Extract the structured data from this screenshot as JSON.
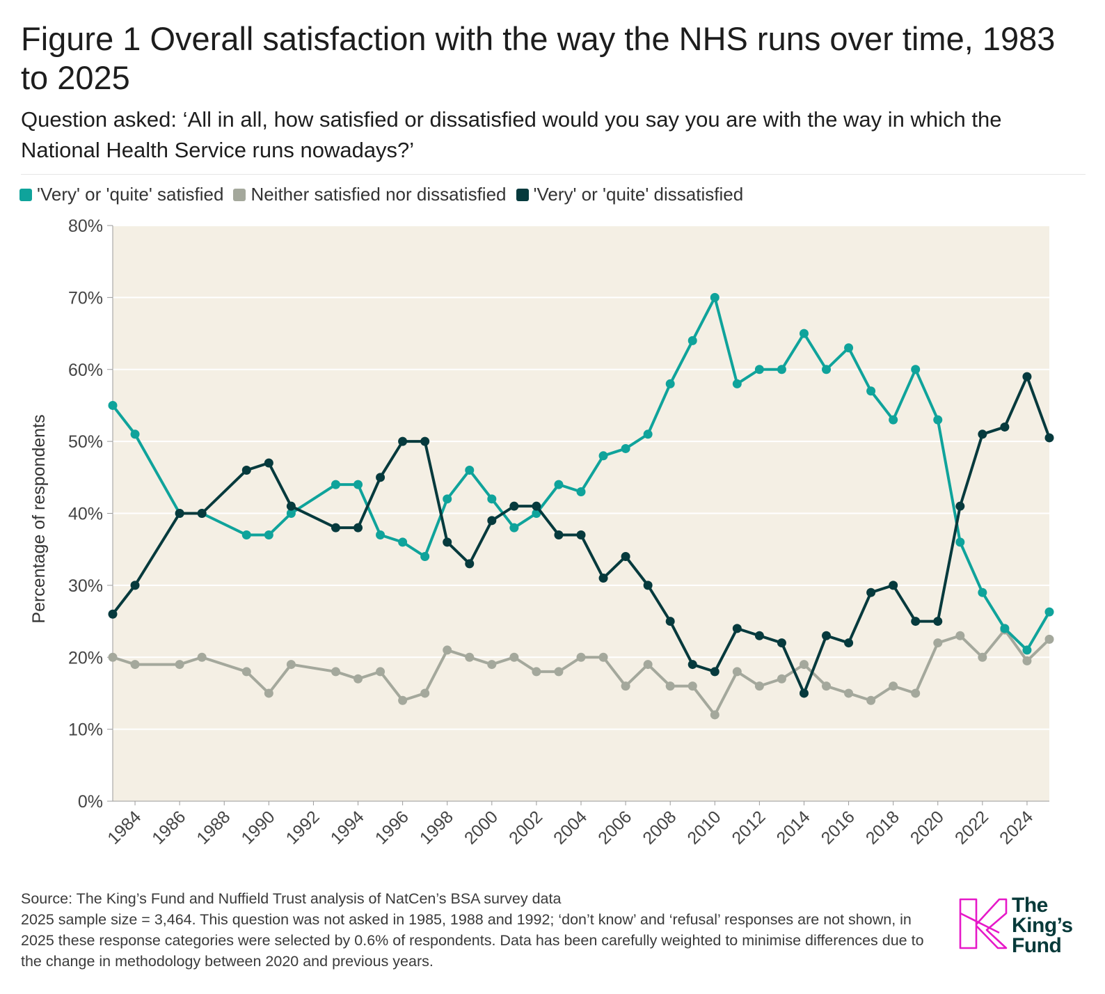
{
  "title": "Figure 1 Overall satisfaction with the way the NHS runs over time, 1983 to 2025",
  "subtitle": "Question asked: ‘All in all, how satisfied or dissatisfied would you say you are with the way in which the National Health Service runs nowadays?’",
  "legend": [
    {
      "label": "'Very' or 'quite' satisfied",
      "color": "#0fa39b"
    },
    {
      "label": "Neither satisfied nor dissatisfied",
      "color": "#a4a89c"
    },
    {
      "label": "'Very' or 'quite' dissatisfied",
      "color": "#063a3d"
    }
  ],
  "chart_data": {
    "type": "line",
    "ylabel": "Percentage of respondents",
    "xlabel": "",
    "ylim": [
      0,
      80
    ],
    "yticks": [
      "0%",
      "10%",
      "20%",
      "30%",
      "40%",
      "50%",
      "60%",
      "70%",
      "80%"
    ],
    "xlim": [
      1983,
      2025
    ],
    "xticks": [
      "1984",
      "1986",
      "1988",
      "1990",
      "1992",
      "1994",
      "1996",
      "1998",
      "2000",
      "2002",
      "2004",
      "2006",
      "2008",
      "2010",
      "2012",
      "2014",
      "2016",
      "2018",
      "2020",
      "2022",
      "2024"
    ],
    "grid": true,
    "legend_position": "top-left",
    "background_color": "#f4efe4",
    "x": [
      1983,
      1984,
      1986,
      1987,
      1989,
      1990,
      1991,
      1993,
      1994,
      1995,
      1996,
      1997,
      1998,
      1999,
      2000,
      2001,
      2002,
      2003,
      2004,
      2005,
      2006,
      2007,
      2008,
      2009,
      2010,
      2011,
      2012,
      2013,
      2014,
      2015,
      2016,
      2017,
      2018,
      2019,
      2020,
      2021,
      2022,
      2023,
      2024,
      2025
    ],
    "series": [
      {
        "name": "'Very' or 'quite' satisfied",
        "color": "#0fa39b",
        "values": [
          55,
          51,
          40,
          40,
          37,
          37,
          40,
          44,
          44,
          37,
          36,
          34,
          42,
          46,
          42,
          38,
          40,
          44,
          43,
          48,
          49,
          51,
          58,
          64,
          70,
          58,
          60,
          60,
          65,
          60,
          63,
          57,
          53,
          60,
          53,
          36,
          29,
          24,
          21,
          26.3
        ]
      },
      {
        "name": "Neither satisfied nor dissatisfied",
        "color": "#a4a89c",
        "values": [
          20,
          19,
          19,
          20,
          18,
          15,
          19,
          18,
          17,
          18,
          14,
          15,
          21,
          20,
          19,
          20,
          18,
          18,
          20,
          20,
          16,
          19,
          16,
          16,
          12,
          18,
          16,
          17,
          19,
          16,
          15,
          14,
          16,
          15,
          22,
          23,
          20,
          23.8,
          19.5,
          22.5
        ]
      },
      {
        "name": "'Very' or 'quite' dissatisfied",
        "color": "#063a3d",
        "values": [
          26,
          30,
          40,
          40,
          46,
          47,
          41,
          38,
          38,
          45,
          50,
          50,
          36,
          33,
          39,
          41,
          41,
          37,
          37,
          31,
          34,
          30,
          25,
          19,
          18,
          24,
          23,
          22,
          15,
          23,
          22,
          29,
          30,
          25,
          25,
          41,
          51,
          52,
          59,
          50.5
        ]
      }
    ]
  },
  "footnote": {
    "source": "Source: The King’s Fund and Nuffield Trust analysis of NatCen’s BSA survey data",
    "notes": "2025 sample size = 3,464. This question was not asked in 1985, 1988 and 1992; ‘don’t know’ and ‘refusal’ responses are not shown, in 2025 these response categories were selected by 0.6% of respondents. Data has been carefully weighted to minimise differences due to the change in methodology between 2020 and previous years."
  },
  "logo": {
    "line1": "The",
    "line2": "King’s",
    "line3": "Fund",
    "mark_color": "#e619c8",
    "text_color": "#083a3a"
  }
}
